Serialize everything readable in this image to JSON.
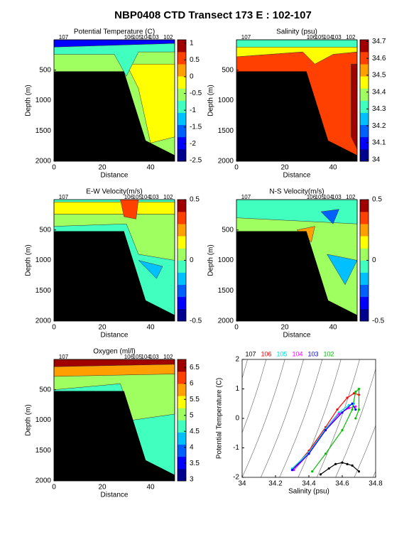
{
  "title": "NBP0408 CTD Transect 173 E : 102-107",
  "chart_data": [
    {
      "type": "contour",
      "title": "Potential Temperature (C)",
      "stations": [
        "107",
        "106",
        "105",
        "104",
        "103",
        "102"
      ],
      "xlabel": "Distance",
      "ylabel": "Depth (m)",
      "xlim": [
        0,
        50
      ],
      "xticks": [
        0,
        20,
        40
      ],
      "ylim": [
        0,
        2000
      ],
      "y_reversed": true,
      "yticks": [
        500,
        1000,
        1500,
        2000
      ],
      "colormap": [
        "#00008f",
        "#0000ff",
        "#0060ff",
        "#00c0ff",
        "#40ffbf",
        "#a0ff60",
        "#ffff00",
        "#ffa000",
        "#ff4000",
        "#a00000"
      ],
      "clim": [
        -2.52,
        1.1
      ],
      "cticks": [
        1,
        0.5,
        0,
        -0.5,
        -1,
        -1.5,
        -2,
        -2.5
      ]
    },
    {
      "type": "contour",
      "title": "Salinity (psu)",
      "stations": [
        "107",
        "106",
        "105",
        "104",
        "103",
        "102"
      ],
      "xlabel": "Distance",
      "ylabel": "Depth (m)",
      "xlim": [
        0,
        50
      ],
      "xticks": [
        0,
        20,
        40
      ],
      "ylim": [
        0,
        2000
      ],
      "y_reversed": true,
      "yticks": [
        500,
        1000,
        1500,
        2000
      ],
      "colormap": [
        "#00008f",
        "#0000ff",
        "#0060ff",
        "#00c0ff",
        "#40ffbf",
        "#a0ff60",
        "#ffff00",
        "#ffa000",
        "#ff4000",
        "#a00000"
      ],
      "clim": [
        33.99,
        34.71
      ],
      "cticks": [
        34.7,
        34.6,
        34.5,
        34.4,
        34.3,
        34.2,
        34.1,
        34
      ]
    },
    {
      "type": "contour",
      "title": "E-W Velocity(m/s)",
      "stations": [
        "107",
        "106",
        "105",
        "104",
        "103",
        "102"
      ],
      "xlabel": "Distance",
      "ylabel": "Depth (m)",
      "xlim": [
        0,
        50
      ],
      "xticks": [
        0,
        20,
        40
      ],
      "ylim": [
        0,
        2000
      ],
      "y_reversed": true,
      "yticks": [
        500,
        1000,
        1500,
        2000
      ],
      "colormap": [
        "#00008f",
        "#0000ff",
        "#0060ff",
        "#00c0ff",
        "#40ffbf",
        "#a0ff60",
        "#ffff00",
        "#ffa000",
        "#ff4000",
        "#a00000"
      ],
      "clim": [
        -0.5,
        0.5
      ],
      "cticks": [
        0.5,
        0,
        -0.5
      ]
    },
    {
      "type": "contour",
      "title": "N-S Velocity(m/s)",
      "stations": [
        "107",
        "106",
        "105",
        "104",
        "103",
        "102"
      ],
      "xlabel": "Distance",
      "ylabel": "Depth (m)",
      "xlim": [
        0,
        50
      ],
      "xticks": [
        0,
        20,
        40
      ],
      "ylim": [
        0,
        2000
      ],
      "y_reversed": true,
      "yticks": [
        500,
        1000,
        1500,
        2000
      ],
      "colormap": [
        "#00008f",
        "#0000ff",
        "#0060ff",
        "#00c0ff",
        "#40ffbf",
        "#a0ff60",
        "#ffff00",
        "#ffa000",
        "#ff4000",
        "#a00000"
      ],
      "clim": [
        -0.5,
        0.5
      ],
      "cticks": [
        0.5,
        0,
        -0.5
      ]
    },
    {
      "type": "contour",
      "title": "Oxygen (ml/l)",
      "stations": [
        "107",
        "106",
        "105",
        "104",
        "103",
        "102"
      ],
      "xlabel": "Distance",
      "ylabel": "Depth (m)",
      "xlim": [
        0,
        50
      ],
      "xticks": [
        0,
        20,
        40
      ],
      "ylim": [
        0,
        2000
      ],
      "y_reversed": true,
      "yticks": [
        500,
        1000,
        1500,
        2000
      ],
      "colormap": [
        "#00008f",
        "#0000ff",
        "#0060ff",
        "#00c0ff",
        "#40ffbf",
        "#a0ff60",
        "#ffff00",
        "#ffa000",
        "#ff4000",
        "#a00000"
      ],
      "clim": [
        2.95,
        6.75
      ],
      "cticks": [
        6.5,
        6,
        5.5,
        5,
        4.5,
        4,
        3.5,
        3
      ]
    },
    {
      "type": "line",
      "xlabel": "Salinity (psu)",
      "ylabel": "Potential Temperature (C)",
      "xlim": [
        34,
        34.8
      ],
      "xticks": [
        34,
        34.2,
        34.4,
        34.6,
        34.8
      ],
      "ylim": [
        -2,
        2
      ],
      "yticks": [
        -2,
        -1,
        0,
        1,
        2
      ],
      "series": [
        {
          "name": "107",
          "color": "#000000",
          "x": [
            34.47,
            34.52,
            34.56,
            34.6,
            34.63,
            34.66,
            34.7
          ],
          "values": [
            -1.9,
            -1.7,
            -1.55,
            -1.5,
            -1.55,
            -1.6,
            -1.8
          ]
        },
        {
          "name": "106",
          "color": "#ff0000",
          "x": [
            34.3,
            34.4,
            34.5,
            34.57,
            34.63,
            34.67,
            34.7
          ],
          "values": [
            -1.75,
            -1.1,
            -0.3,
            0.3,
            0.7,
            0.85,
            0.8
          ]
        },
        {
          "name": "105",
          "color": "#00e0e0",
          "x": [
            34.3,
            34.4,
            34.5,
            34.58,
            34.64,
            34.67
          ],
          "values": [
            -1.7,
            -1.15,
            -0.35,
            0.2,
            0.45,
            0.5
          ]
        },
        {
          "name": "104",
          "color": "#ff00ff",
          "x": [
            34.31,
            34.4,
            34.5,
            34.58,
            34.64,
            34.68
          ],
          "values": [
            -1.75,
            -1.2,
            -0.4,
            0.15,
            0.35,
            0.4
          ]
        },
        {
          "name": "103",
          "color": "#0000ff",
          "x": [
            34.3,
            34.4,
            34.5,
            34.6,
            34.66,
            34.68
          ],
          "values": [
            -1.75,
            -1.2,
            -0.4,
            0.2,
            0.5,
            0.3
          ]
        },
        {
          "name": "102",
          "color": "#00c000",
          "x": [
            34.42,
            34.5,
            34.6,
            34.66,
            34.68,
            34.7,
            34.7,
            34.68
          ],
          "values": [
            -1.8,
            -1.2,
            -0.4,
            0.3,
            0.9,
            1.0,
            0.3,
            0
          ]
        }
      ]
    }
  ]
}
